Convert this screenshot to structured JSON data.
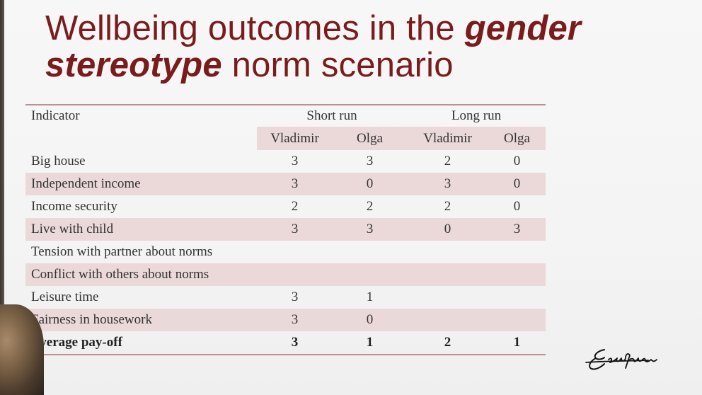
{
  "slide": {
    "title_part1": "Wellbeing outcomes in the ",
    "title_bold1": "gender",
    "title_bold2": "stereotype",
    "title_part2": " norm scenario"
  },
  "table": {
    "header_indicator": "Indicator",
    "group_short": "Short run",
    "group_long": "Long run",
    "subheaders": [
      "Vladimir",
      "Olga",
      "Vladimir",
      "Olga"
    ],
    "rows": [
      {
        "label": "Big house",
        "values": [
          "3",
          "3",
          "2",
          "0"
        ]
      },
      {
        "label": "Independent income",
        "values": [
          "3",
          "0",
          "3",
          "0"
        ]
      },
      {
        "label": "Income security",
        "values": [
          "2",
          "2",
          "2",
          "0"
        ]
      },
      {
        "label": "Live with child",
        "values": [
          "3",
          "3",
          "0",
          "3"
        ]
      },
      {
        "label": "Tension with partner about norms",
        "values": [
          "",
          "",
          "",
          ""
        ]
      },
      {
        "label": "Conflict with others about norms",
        "values": [
          "",
          "",
          "",
          ""
        ]
      },
      {
        "label": "Leisure time",
        "values": [
          "3",
          "1",
          "",
          ""
        ]
      },
      {
        "label": "Fairness in housework",
        "values": [
          "3",
          "0",
          "",
          ""
        ]
      }
    ],
    "average": {
      "label": "Average pay-off",
      "values": [
        "3",
        "1",
        "2",
        "1"
      ]
    }
  },
  "logo": {
    "name": "erasmus-signature-logo",
    "color": "#111111"
  },
  "colors": {
    "title": "#7a1c1c",
    "row_shade": "#ead9d8",
    "rule": "#b99392"
  }
}
